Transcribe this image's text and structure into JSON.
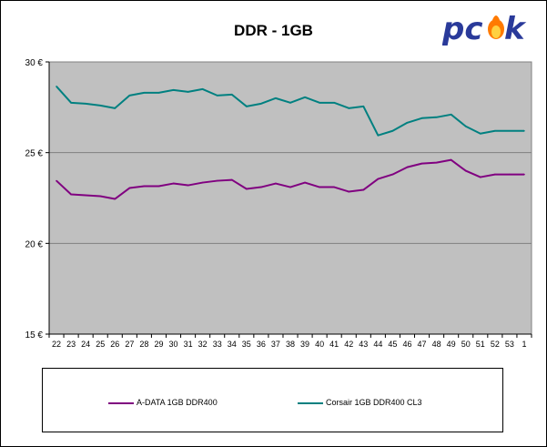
{
  "page": {
    "title": "DDR - 1GB"
  },
  "logo": {
    "text": "pcsk",
    "icon": "flame-icon"
  },
  "colors": {
    "plot_bg": "#c0c0c0",
    "grid": "#808080",
    "adata": "#800080",
    "corsair": "#008080",
    "logo_blue": "#2a3a9a",
    "flame": "#ff7a00"
  },
  "chart_data": {
    "type": "line",
    "title": "DDR - 1GB",
    "xlabel": "",
    "ylabel": "",
    "ylim": [
      15,
      30
    ],
    "yticks": [
      15,
      20,
      25,
      30
    ],
    "ytick_labels": [
      "15 €",
      "20 €",
      "25 €",
      "30 €"
    ],
    "grid": true,
    "legend_position": "bottom",
    "categories": [
      "22",
      "23",
      "24",
      "25",
      "26",
      "27",
      "28",
      "29",
      "30",
      "31",
      "32",
      "33",
      "34",
      "35",
      "36",
      "37",
      "38",
      "39",
      "40",
      "41",
      "42",
      "43",
      "44",
      "45",
      "46",
      "47",
      "48",
      "49",
      "50",
      "51",
      "52",
      "53",
      "1"
    ],
    "series": [
      {
        "name": "A-DATA 1GB DDR400",
        "color": "#800080",
        "values": [
          23.45,
          22.7,
          22.65,
          22.6,
          22.45,
          23.05,
          23.15,
          23.15,
          23.3,
          23.2,
          23.35,
          23.45,
          23.5,
          23.0,
          23.1,
          23.3,
          23.1,
          23.35,
          23.1,
          23.1,
          22.85,
          22.95,
          23.55,
          23.8,
          24.2,
          24.4,
          24.45,
          24.6,
          24.0,
          23.65,
          23.8,
          23.8,
          23.8
        ]
      },
      {
        "name": "Corsair 1GB DDR400 CL3",
        "color": "#008080",
        "values": [
          28.65,
          27.75,
          27.7,
          27.6,
          27.45,
          28.15,
          28.3,
          28.3,
          28.45,
          28.35,
          28.5,
          28.15,
          28.2,
          27.55,
          27.7,
          28.0,
          27.75,
          28.05,
          27.75,
          27.75,
          27.45,
          27.55,
          25.95,
          26.2,
          26.65,
          26.9,
          26.95,
          27.1,
          26.45,
          26.05,
          26.2,
          26.2,
          26.2
        ]
      }
    ]
  }
}
